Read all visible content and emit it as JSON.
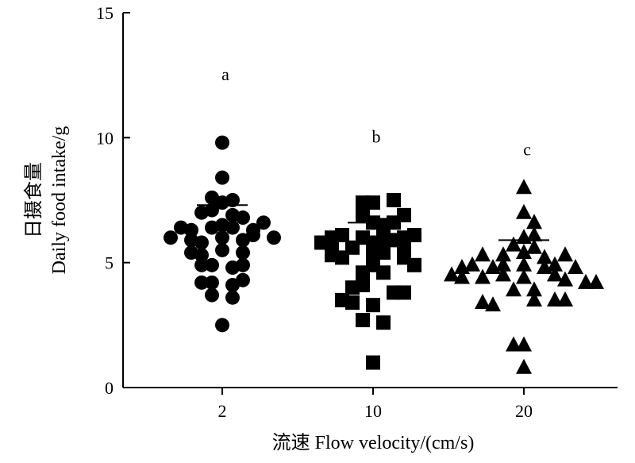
{
  "chart_data": {
    "type": "scatter",
    "categories": [
      "2",
      "10",
      "20"
    ],
    "ylabel_line1": "日摄食量",
    "ylabel_line2": "Daily food intake/g",
    "xlabel": "流速 Flow velocity/(cm/s)",
    "ylim": [
      0,
      15
    ],
    "yticks": [
      0,
      5,
      10,
      15
    ],
    "grid": false,
    "significance_labels": [
      "a",
      "b",
      "c"
    ],
    "significance_y": [
      12.3,
      9.8,
      9.3
    ],
    "means": [
      7.3,
      6.6,
      5.9
    ],
    "series": [
      {
        "marker": "circle",
        "category": "2",
        "points": [
          {
            "offset": 0,
            "y": 9.8
          },
          {
            "offset": 0,
            "y": 8.4
          },
          {
            "offset": -1,
            "y": 7.6
          },
          {
            "offset": 0,
            "y": 7.4
          },
          {
            "offset": 1,
            "y": 7.5
          },
          {
            "offset": -2,
            "y": 7.0
          },
          {
            "offset": -1,
            "y": 7.1
          },
          {
            "offset": 1,
            "y": 6.9
          },
          {
            "offset": 2,
            "y": 6.8
          },
          {
            "offset": -4,
            "y": 6.4
          },
          {
            "offset": -3,
            "y": 6.3
          },
          {
            "offset": -1,
            "y": 6.4
          },
          {
            "offset": 0,
            "y": 6.5
          },
          {
            "offset": 1,
            "y": 6.4
          },
          {
            "offset": 3,
            "y": 6.3
          },
          {
            "offset": 4,
            "y": 6.6
          },
          {
            "offset": -5,
            "y": 6.0
          },
          {
            "offset": -3,
            "y": 5.9
          },
          {
            "offset": -2,
            "y": 5.8
          },
          {
            "offset": 0,
            "y": 6.0
          },
          {
            "offset": 2,
            "y": 5.9
          },
          {
            "offset": 3,
            "y": 6.1
          },
          {
            "offset": 5,
            "y": 6.0
          },
          {
            "offset": -3,
            "y": 5.4
          },
          {
            "offset": -2,
            "y": 5.3
          },
          {
            "offset": 0,
            "y": 5.5
          },
          {
            "offset": 2,
            "y": 5.4
          },
          {
            "offset": -2,
            "y": 4.9
          },
          {
            "offset": -1,
            "y": 4.9
          },
          {
            "offset": 1,
            "y": 4.8
          },
          {
            "offset": 2,
            "y": 4.9
          },
          {
            "offset": -2,
            "y": 4.2
          },
          {
            "offset": -1,
            "y": 4.2
          },
          {
            "offset": 1,
            "y": 4.1
          },
          {
            "offset": 2,
            "y": 4.3
          },
          {
            "offset": -1,
            "y": 3.7
          },
          {
            "offset": 1,
            "y": 3.6
          },
          {
            "offset": 0,
            "y": 2.5
          }
        ]
      },
      {
        "marker": "square",
        "category": "10",
        "points": [
          {
            "offset": -1,
            "y": 7.4
          },
          {
            "offset": 0,
            "y": 7.4
          },
          {
            "offset": 2,
            "y": 7.5
          },
          {
            "offset": -1,
            "y": 6.9
          },
          {
            "offset": 3,
            "y": 6.9
          },
          {
            "offset": 0,
            "y": 6.6
          },
          {
            "offset": 1,
            "y": 6.5
          },
          {
            "offset": 2,
            "y": 6.6
          },
          {
            "offset": -4,
            "y": 6.0
          },
          {
            "offset": -3,
            "y": 6.1
          },
          {
            "offset": -1,
            "y": 6.0
          },
          {
            "offset": 1,
            "y": 6.1
          },
          {
            "offset": 2,
            "y": 5.9
          },
          {
            "offset": 3,
            "y": 6.0
          },
          {
            "offset": 4,
            "y": 6.1
          },
          {
            "offset": -5,
            "y": 5.8
          },
          {
            "offset": -4,
            "y": 5.6
          },
          {
            "offset": -2,
            "y": 5.6
          },
          {
            "offset": 0,
            "y": 5.8
          },
          {
            "offset": 1,
            "y": 5.6
          },
          {
            "offset": 3,
            "y": 5.6
          },
          {
            "offset": -4,
            "y": 5.3
          },
          {
            "offset": -3,
            "y": 5.2
          },
          {
            "offset": 0,
            "y": 5.3
          },
          {
            "offset": 1,
            "y": 5.4
          },
          {
            "offset": 3,
            "y": 5.2
          },
          {
            "offset": 0,
            "y": 4.9
          },
          {
            "offset": 4,
            "y": 4.9
          },
          {
            "offset": -1,
            "y": 4.6
          },
          {
            "offset": 1,
            "y": 4.6
          },
          {
            "offset": -2,
            "y": 4.0
          },
          {
            "offset": -1,
            "y": 4.1
          },
          {
            "offset": 2,
            "y": 3.8
          },
          {
            "offset": 3,
            "y": 3.8
          },
          {
            "offset": -3,
            "y": 3.5
          },
          {
            "offset": -2,
            "y": 3.4
          },
          {
            "offset": 0,
            "y": 3.3
          },
          {
            "offset": -1,
            "y": 2.7
          },
          {
            "offset": 1,
            "y": 2.6
          },
          {
            "offset": 0,
            "y": 1.0
          }
        ]
      },
      {
        "marker": "triangle",
        "category": "20",
        "points": [
          {
            "offset": 0,
            "y": 8.0
          },
          {
            "offset": 0,
            "y": 7.0
          },
          {
            "offset": 1,
            "y": 6.6
          },
          {
            "offset": 0,
            "y": 6.0
          },
          {
            "offset": 1,
            "y": 6.1
          },
          {
            "offset": -1,
            "y": 5.7
          },
          {
            "offset": 1,
            "y": 5.6
          },
          {
            "offset": -4,
            "y": 5.3
          },
          {
            "offset": -2,
            "y": 5.3
          },
          {
            "offset": 0,
            "y": 5.4
          },
          {
            "offset": 2,
            "y": 5.2
          },
          {
            "offset": 4,
            "y": 5.3
          },
          {
            "offset": -6,
            "y": 4.8
          },
          {
            "offset": -5,
            "y": 4.9
          },
          {
            "offset": -3,
            "y": 4.8
          },
          {
            "offset": -2,
            "y": 4.9
          },
          {
            "offset": 0,
            "y": 4.9
          },
          {
            "offset": 2,
            "y": 4.8
          },
          {
            "offset": 3,
            "y": 4.9
          },
          {
            "offset": 5,
            "y": 4.8
          },
          {
            "offset": -7,
            "y": 4.5
          },
          {
            "offset": -6,
            "y": 4.4
          },
          {
            "offset": -4,
            "y": 4.4
          },
          {
            "offset": -2,
            "y": 4.5
          },
          {
            "offset": 0,
            "y": 4.4
          },
          {
            "offset": 3,
            "y": 4.5
          },
          {
            "offset": 4,
            "y": 4.3
          },
          {
            "offset": 6,
            "y": 4.2
          },
          {
            "offset": 7,
            "y": 4.2
          },
          {
            "offset": -1,
            "y": 3.9
          },
          {
            "offset": 1,
            "y": 3.9
          },
          {
            "offset": -4,
            "y": 3.4
          },
          {
            "offset": -3,
            "y": 3.3
          },
          {
            "offset": 1,
            "y": 3.5
          },
          {
            "offset": 3,
            "y": 3.5
          },
          {
            "offset": 4,
            "y": 3.5
          },
          {
            "offset": -1,
            "y": 1.7
          },
          {
            "offset": 0,
            "y": 1.7
          },
          {
            "offset": 0,
            "y": 0.8
          }
        ]
      }
    ]
  }
}
